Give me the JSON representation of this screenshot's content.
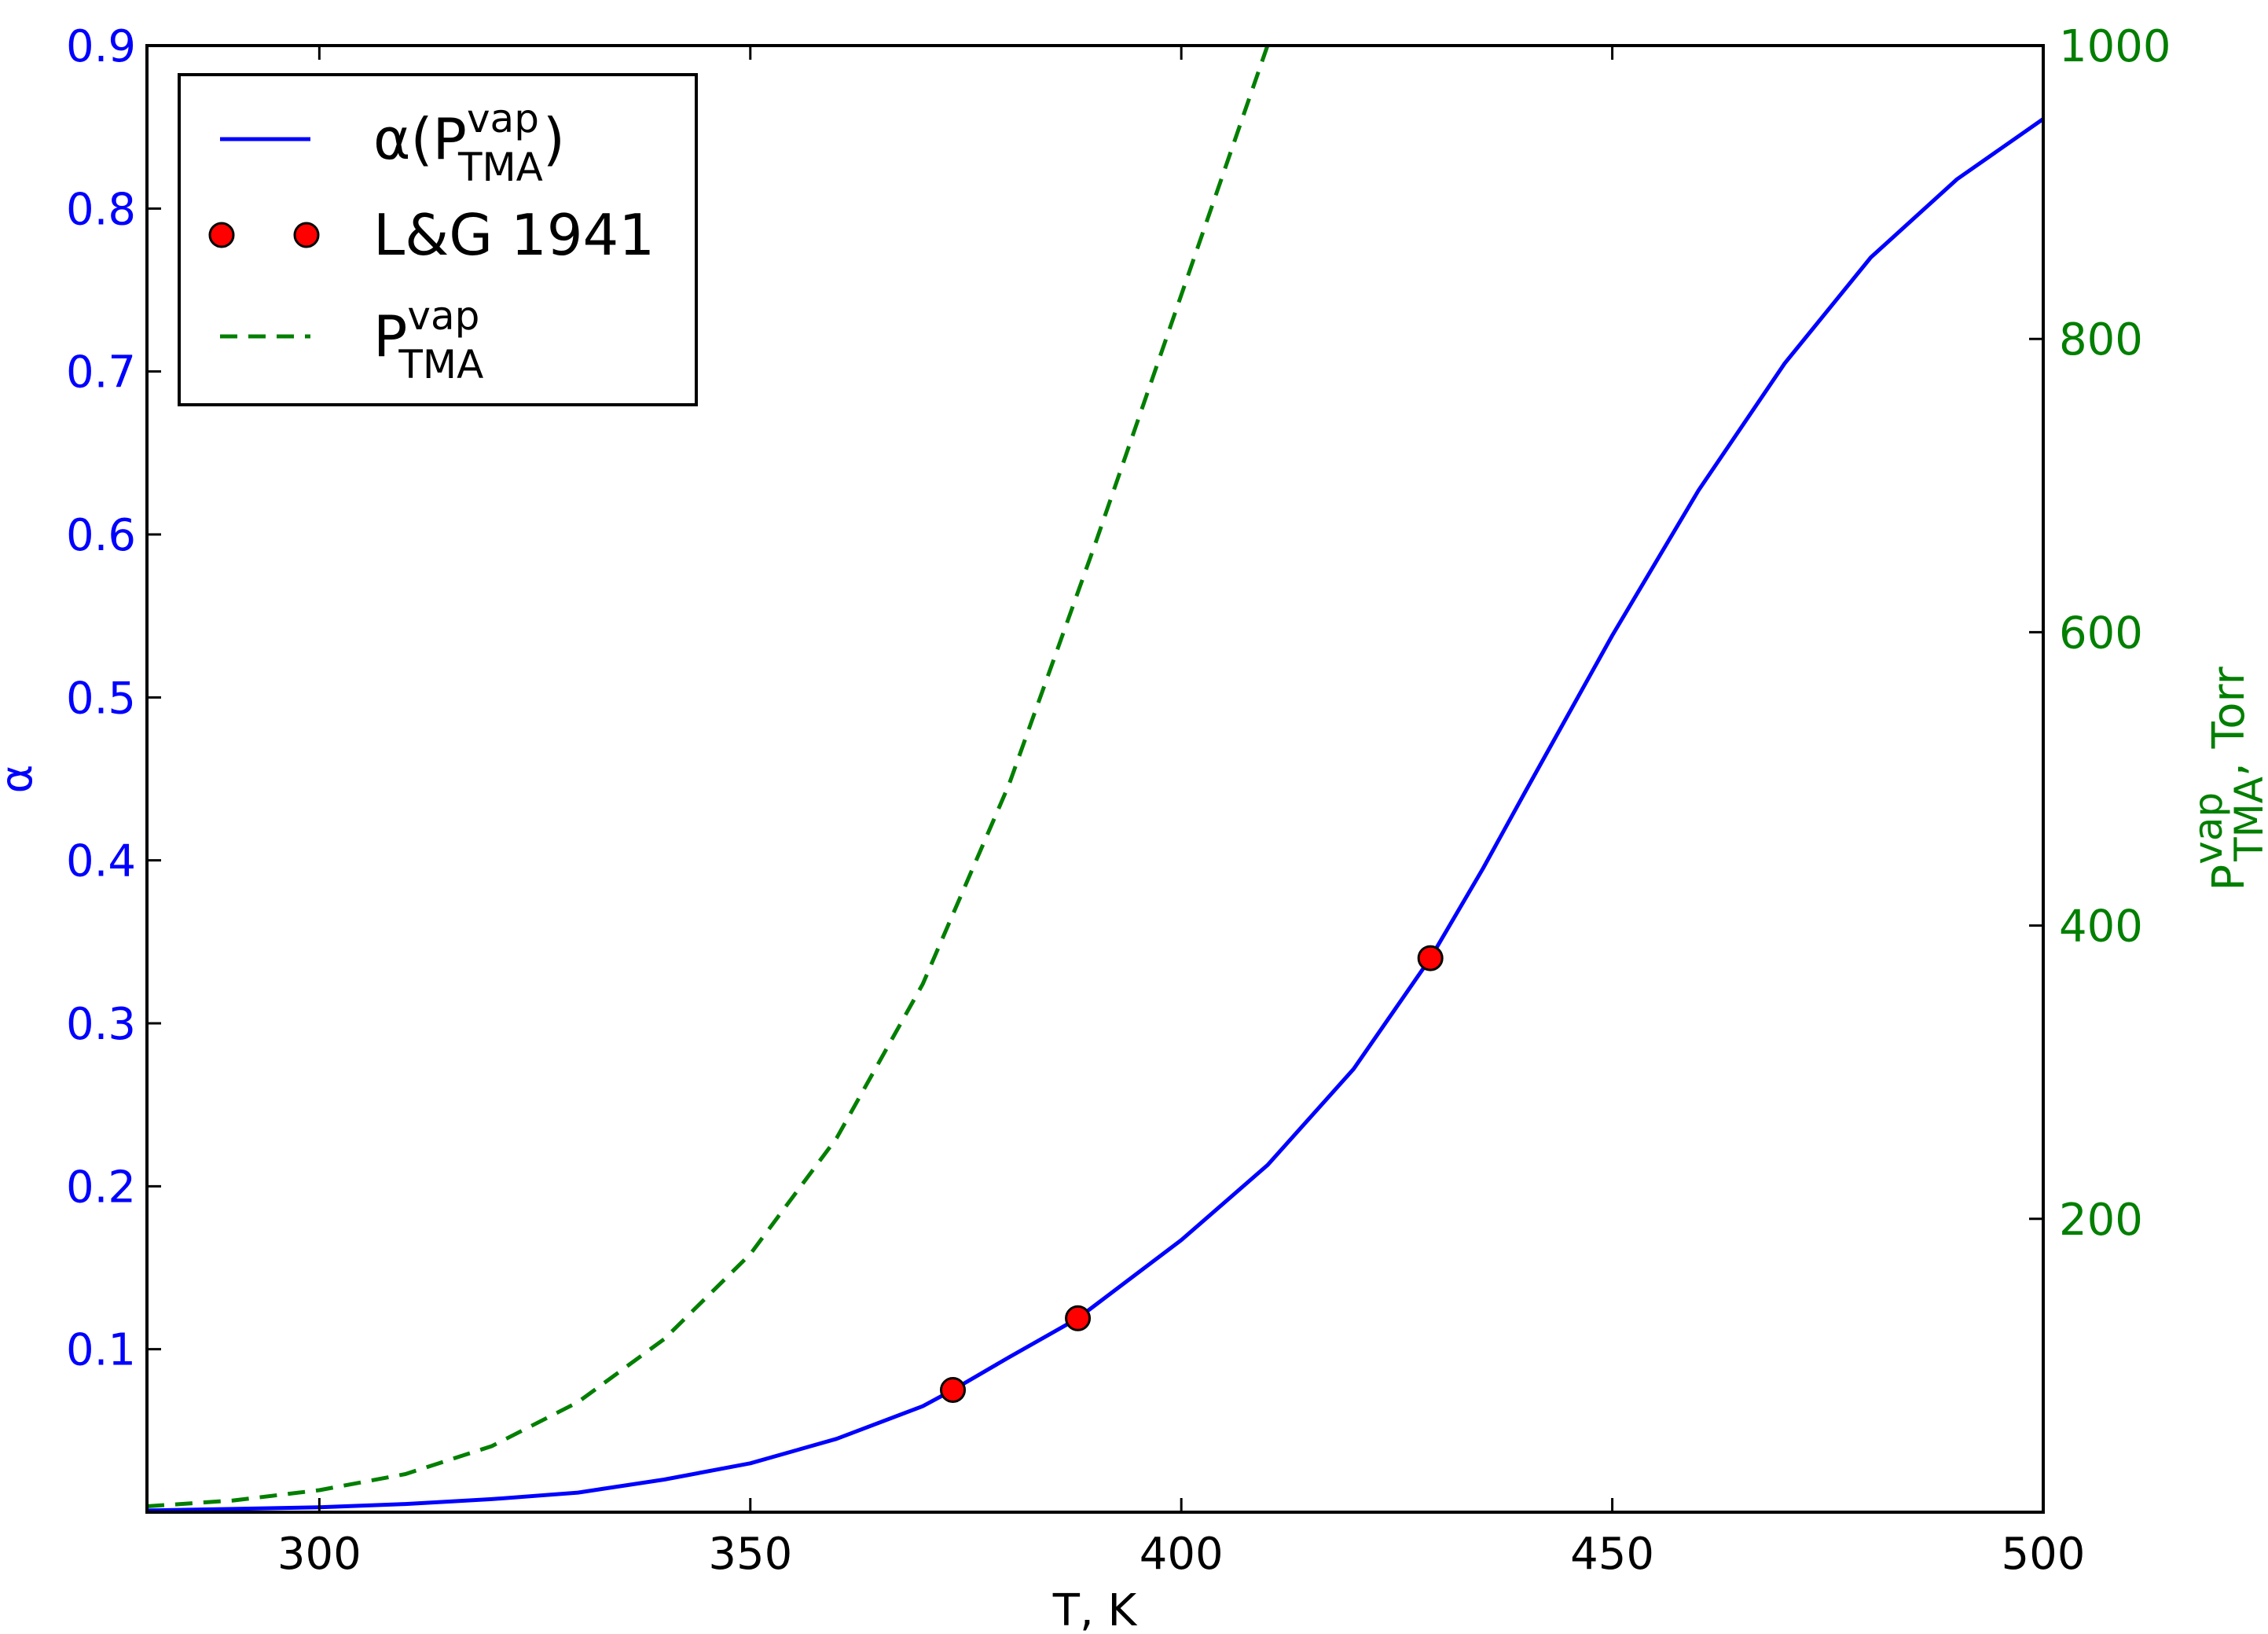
{
  "chart_data": {
    "type": "line",
    "xlabel": "T, K",
    "ylabel_left": "α",
    "ylabel_right": {
      "base": "P",
      "sup": "vap",
      "sub": "TMA",
      "suffix": ", Torr"
    },
    "xlim": [
      280,
      500
    ],
    "ylim_left": [
      0,
      0.9
    ],
    "ylim_right": [
      0,
      1000
    ],
    "x_ticks": [
      "300",
      "350",
      "400",
      "450",
      "500"
    ],
    "y_left_ticks": [
      "0.1",
      "0.2",
      "0.3",
      "0.4",
      "0.5",
      "0.6",
      "0.7",
      "0.8",
      "0.9"
    ],
    "y_right_ticks": [
      "200",
      "400",
      "600",
      "800",
      "1000"
    ],
    "grid": false,
    "legend_position": "top-left",
    "colors": {
      "alpha": "#0000ff",
      "points": "#ff0000",
      "pvap": "#007f00"
    },
    "series": [
      {
        "name": {
          "pre": "α(P",
          "sup": "vap",
          "sub": "TMA",
          "post": ")"
        },
        "axis": "left",
        "style": "solid",
        "x": [
          280,
          290,
          300,
          310,
          320,
          330,
          340,
          350,
          360,
          370,
          373.5,
          380,
          388,
          395,
          400,
          410,
          420,
          428.9,
          435,
          440,
          450,
          460,
          470,
          480,
          490,
          500
        ],
        "y": [
          0.001,
          0.002,
          0.003,
          0.005,
          0.008,
          0.012,
          0.02,
          0.03,
          0.045,
          0.065,
          0.075,
          0.095,
          0.119,
          0.147,
          0.167,
          0.213,
          0.272,
          0.34,
          0.395,
          0.443,
          0.538,
          0.627,
          0.705,
          0.77,
          0.818,
          0.855
        ]
      },
      {
        "name": "L&G 1941",
        "axis": "left",
        "style": "markers",
        "x": [
          373.5,
          388.0,
          428.9
        ],
        "y": [
          0.075,
          0.119,
          0.34
        ]
      },
      {
        "name": {
          "pre": "P",
          "sup": "vap",
          "sub": "TMA",
          "post": ""
        },
        "axis": "right",
        "style": "dashed",
        "x": [
          280,
          290,
          300,
          310,
          320,
          330,
          340,
          350,
          360,
          370,
          380,
          390,
          400,
          410
        ],
        "y": [
          4,
          8,
          15,
          26,
          45,
          75,
          118,
          176,
          255,
          360,
          496,
          660,
          830,
          1000
        ]
      }
    ]
  }
}
